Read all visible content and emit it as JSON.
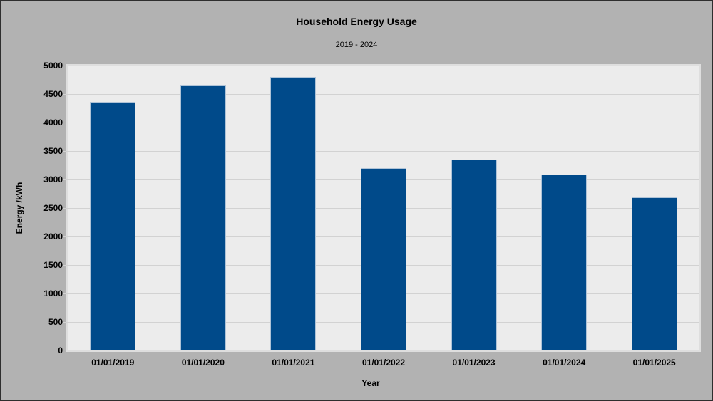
{
  "chart_data": {
    "type": "bar",
    "title": "Household Energy Usage",
    "subtitle": "2019 - 2024",
    "xlabel": "Year",
    "ylabel": "Energy /kWh",
    "categories": [
      "01/01/2019",
      "01/01/2020",
      "01/01/2021",
      "01/01/2022",
      "01/01/2023",
      "01/01/2024",
      "01/01/2025"
    ],
    "values": [
      4365,
      4655,
      4805,
      3195,
      3355,
      3085,
      2690
    ],
    "ylim": [
      0,
      5000
    ],
    "ytick_step": 500,
    "grid": "horizontal",
    "legend": "none",
    "colors": {
      "bar_fill": "#004A8A",
      "bar_border": "#AFC3D7",
      "canvas_bg": "#B2B2B2",
      "plot_bg": "#ECECEC",
      "gridline": "#D2D2D2",
      "frame_border": "#2E2E2E",
      "text": "#000000"
    }
  }
}
